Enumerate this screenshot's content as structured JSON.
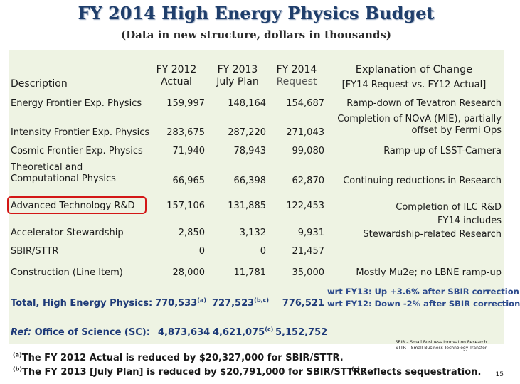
{
  "title": "FY 2014 High Energy Physics Budget",
  "subtitle": "(Data in new structure, dollars in thousands)",
  "headers": {
    "description": "Description",
    "fy2012_line1": "FY 2012",
    "fy2012_line2": "Actual",
    "fy2013_line1": "FY 2013",
    "fy2013_line2": "July Plan",
    "fy2014_line1": "FY 2014",
    "fy2014_line2": "Request",
    "explanation_line1": "Explanation of Change",
    "explanation_line2": "[FY14 Request vs. FY12 Actual]"
  },
  "rows": [
    {
      "label": "Energy Frontier Exp. Physics",
      "fy12": "159,997",
      "fy13": "148,164",
      "fy14": "154,687",
      "explanation": [
        "Ramp-down of Tevatron Research"
      ]
    },
    {
      "label": "Intensity Frontier Exp. Physics",
      "fy12": "283,675",
      "fy13": "287,220",
      "fy14": "271,043",
      "explanation": [
        "Completion of NOvA (MIE), partially",
        "offset by Fermi Ops"
      ]
    },
    {
      "label": "Cosmic Frontier Exp. Physics",
      "fy12": "71,940",
      "fy13": "78,943",
      "fy14": "99,080",
      "explanation": [
        "Ramp-up of LSST-Camera"
      ]
    },
    {
      "label_lines": [
        "Theoretical and",
        "Computational Physics"
      ],
      "fy12": "66,965",
      "fy13": "66,398",
      "fy14": "62,870",
      "explanation": [
        "Continuing reductions in Research"
      ]
    },
    {
      "label": "Advanced Technology R&D",
      "fy12": "157,106",
      "fy13": "131,885",
      "fy14": "122,453",
      "explanation": [
        "Completion of ILC R&D",
        "FY14 includes",
        "Stewardship-related Research"
      ]
    },
    {
      "label": "Accelerator Stewardship",
      "fy12": "2,850",
      "fy13": "3,132",
      "fy14": "9,931"
    },
    {
      "label": "SBIR/STTR",
      "fy12": "0",
      "fy13": "0",
      "fy14": "21,457"
    },
    {
      "label": "Construction (Line Item)",
      "fy12": "28,000",
      "fy13": "11,781",
      "fy14": "35,000",
      "explanation": [
        "Mostly Mu2e;  no LBNE ramp-up"
      ]
    }
  ],
  "total": {
    "label": "Total, High Energy Physics:",
    "fy12": "770,533",
    "fy12_note": "(a)",
    "fy13": "727,523",
    "fy13_note": "(b,c)",
    "fy14": "776,521",
    "explanation": [
      "wrt FY13:  Up +3.6% after SBIR correction",
      "wrt FY12: Down -2% after SBIR correction"
    ]
  },
  "office": {
    "label_italic": "Ref:",
    "label_rest": " Office of Science (SC):",
    "fy12": "4,873,634",
    "fy13": "4,621,075",
    "fy13_note": "(c)",
    "fy14": "5,152,752"
  },
  "footnotes": {
    "a_mark": "(a)",
    "a_text": "The FY 2012 Actual is reduced by $20,327,000 for SBIR/STTR.",
    "b_mark": "(b)",
    "b_text": "The FY 2013 [July Plan] is reduced by $20,791,000 for SBIR/STTR.",
    "c_mark": "(c)",
    "c_text": "Reflects sequestration.",
    "sbir_line1": "SBIR – Small Business Innovation Research",
    "sbir_line2": "STTR – Small Business Technology Transfer"
  },
  "page_number": "15",
  "colors": {
    "title": "#1f3e6b",
    "table_bg": "#eef3e3",
    "highlight": "#d31616",
    "total_text": "#1e3a78"
  }
}
